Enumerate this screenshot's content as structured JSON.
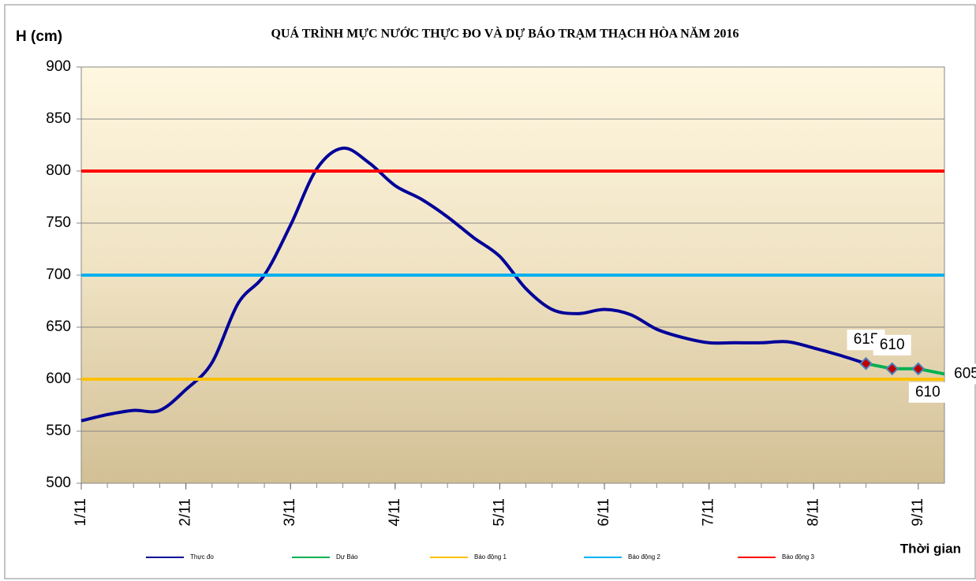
{
  "chart_data": {
    "type": "line",
    "title": "QUÁ TRÌNH MỰC NƯỚC THỰC ĐO VÀ DỰ BÁO TRẠM THẠCH HÒA NĂM 2016",
    "y_label": "H (cm)",
    "x_label": "Thời gian",
    "xlim": [
      1,
      9.25
    ],
    "ylim": [
      500,
      900
    ],
    "yticks": [
      500,
      550,
      600,
      650,
      700,
      750,
      800,
      850,
      900
    ],
    "xticks": [
      {
        "value": 1,
        "label": "1/11"
      },
      {
        "value": 2,
        "label": "2/11"
      },
      {
        "value": 3,
        "label": "3/11"
      },
      {
        "value": 4,
        "label": "4/11"
      },
      {
        "value": 5,
        "label": "5/11"
      },
      {
        "value": 6,
        "label": "6/11"
      },
      {
        "value": 7,
        "label": "7/11"
      },
      {
        "value": 8,
        "label": "8/11"
      },
      {
        "value": 9,
        "label": "9/11"
      }
    ],
    "grid": true,
    "legend": "bottom",
    "series": [
      {
        "name": "Thực đo",
        "color": "#000099",
        "x": [
          1,
          1.25,
          1.5,
          1.75,
          2,
          2.25,
          2.5,
          2.75,
          3,
          3.25,
          3.5,
          3.75,
          4,
          4.25,
          4.5,
          4.75,
          5,
          5.25,
          5.5,
          5.75,
          6,
          6.25,
          6.5,
          6.75,
          7,
          7.25,
          7.5,
          7.75,
          8,
          8.25,
          8.5
        ],
        "values": [
          560,
          566,
          570,
          570,
          590,
          616,
          673,
          700,
          748,
          802,
          822,
          808,
          786,
          773,
          756,
          736,
          718,
          687,
          667,
          663,
          667,
          662,
          648,
          640,
          635,
          635,
          635,
          636,
          630,
          623,
          615
        ]
      },
      {
        "name": "Dự Báo",
        "color": "#00b050",
        "marker_color": "#c00000",
        "marker_edge": "#4f81bd",
        "x": [
          8.5,
          8.75,
          9,
          9.25
        ],
        "values": [
          615,
          610,
          610,
          605
        ]
      },
      {
        "name": "Báo động 1",
        "color": "#ffc000",
        "level": 600
      },
      {
        "name": "Báo động 2",
        "color": "#00b0f0",
        "level": 700
      },
      {
        "name": "Báo động 3",
        "color": "#ff0000",
        "level": 800
      }
    ]
  }
}
